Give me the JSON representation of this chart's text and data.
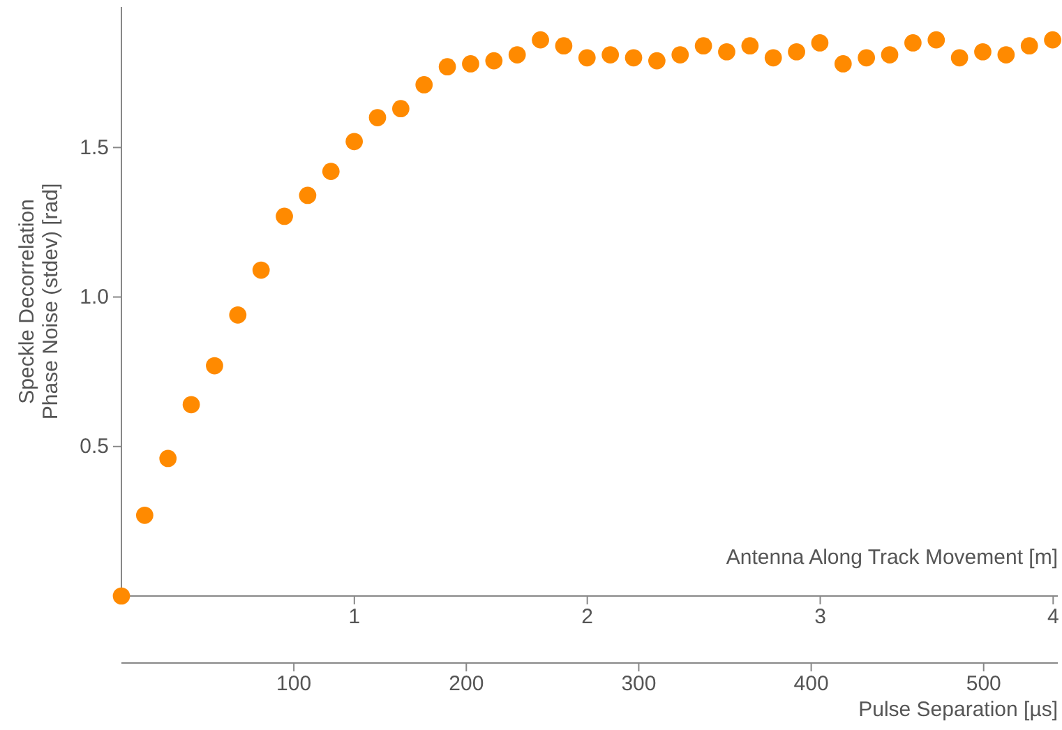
{
  "chart_data": {
    "type": "scatter",
    "xlabel": "Pulse Separation  [µs]",
    "x2label": "Antenna Along Track Movement [m]",
    "ylabel": "Speckle Decorrelation\nPhase Noise (stdev) [rad]",
    "x": [
      0,
      13.5,
      27,
      40.5,
      54,
      67.5,
      81,
      94.5,
      108,
      121.5,
      135,
      148.5,
      162,
      175.5,
      189,
      202.5,
      216,
      229.5,
      243,
      256.5,
      270,
      283.5,
      297,
      310.5,
      324,
      337.5,
      351,
      364.5,
      378,
      391.5,
      405,
      418.5,
      432,
      445.5,
      459,
      472.5,
      486,
      499.5,
      513,
      526.5,
      540
    ],
    "series": [
      {
        "color": "#ff8a00",
        "values": [
          0,
          0.27,
          0.46,
          0.64,
          0.77,
          0.94,
          1.09,
          1.27,
          1.34,
          1.42,
          1.52,
          1.6,
          1.63,
          1.71,
          1.77,
          1.78,
          1.79,
          1.81,
          1.86,
          1.84,
          1.8,
          1.81,
          1.8,
          1.79,
          1.81,
          1.84,
          1.82,
          1.84,
          1.8,
          1.82,
          1.85,
          1.78,
          1.8,
          1.81,
          1.85,
          1.86,
          1.8,
          1.82,
          1.81,
          1.84,
          1.86
        ]
      }
    ],
    "xlim": [
      0,
      543
    ],
    "xticks": [
      100,
      200,
      300,
      400,
      500
    ],
    "x2lim": [
      0,
      4.02
    ],
    "x2ticks": [
      1,
      2,
      3,
      4
    ],
    "ylim": [
      0,
      1.97
    ],
    "yticks": [
      {
        "value": 0.5,
        "label": "0.5"
      },
      {
        "value": 1,
        "label": "1.0"
      },
      {
        "value": 1.5,
        "label": "1.5"
      }
    ],
    "marker": "circle",
    "grid": false
  }
}
